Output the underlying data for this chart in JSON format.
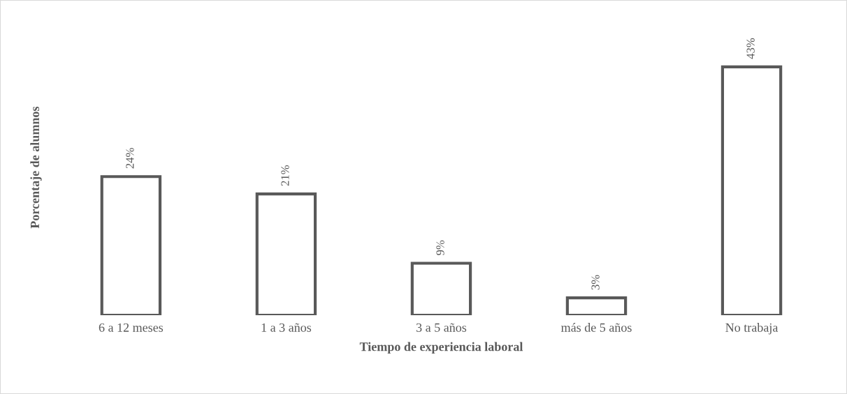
{
  "chart_data": {
    "type": "bar",
    "xlabel": "Tiempo de experiencia laboral",
    "ylabel": "Porcentaje de alumnos",
    "categories": [
      "6 a 12 meses",
      "1 a 3 años",
      "3 a 5 años",
      "más de 5 años",
      "No trabaja"
    ],
    "values": [
      24,
      21,
      9,
      3,
      43
    ],
    "value_labels": [
      "24%",
      "21%",
      "9%",
      "3%",
      "43%"
    ],
    "color": "#595959",
    "grid": false,
    "legend": false
  }
}
